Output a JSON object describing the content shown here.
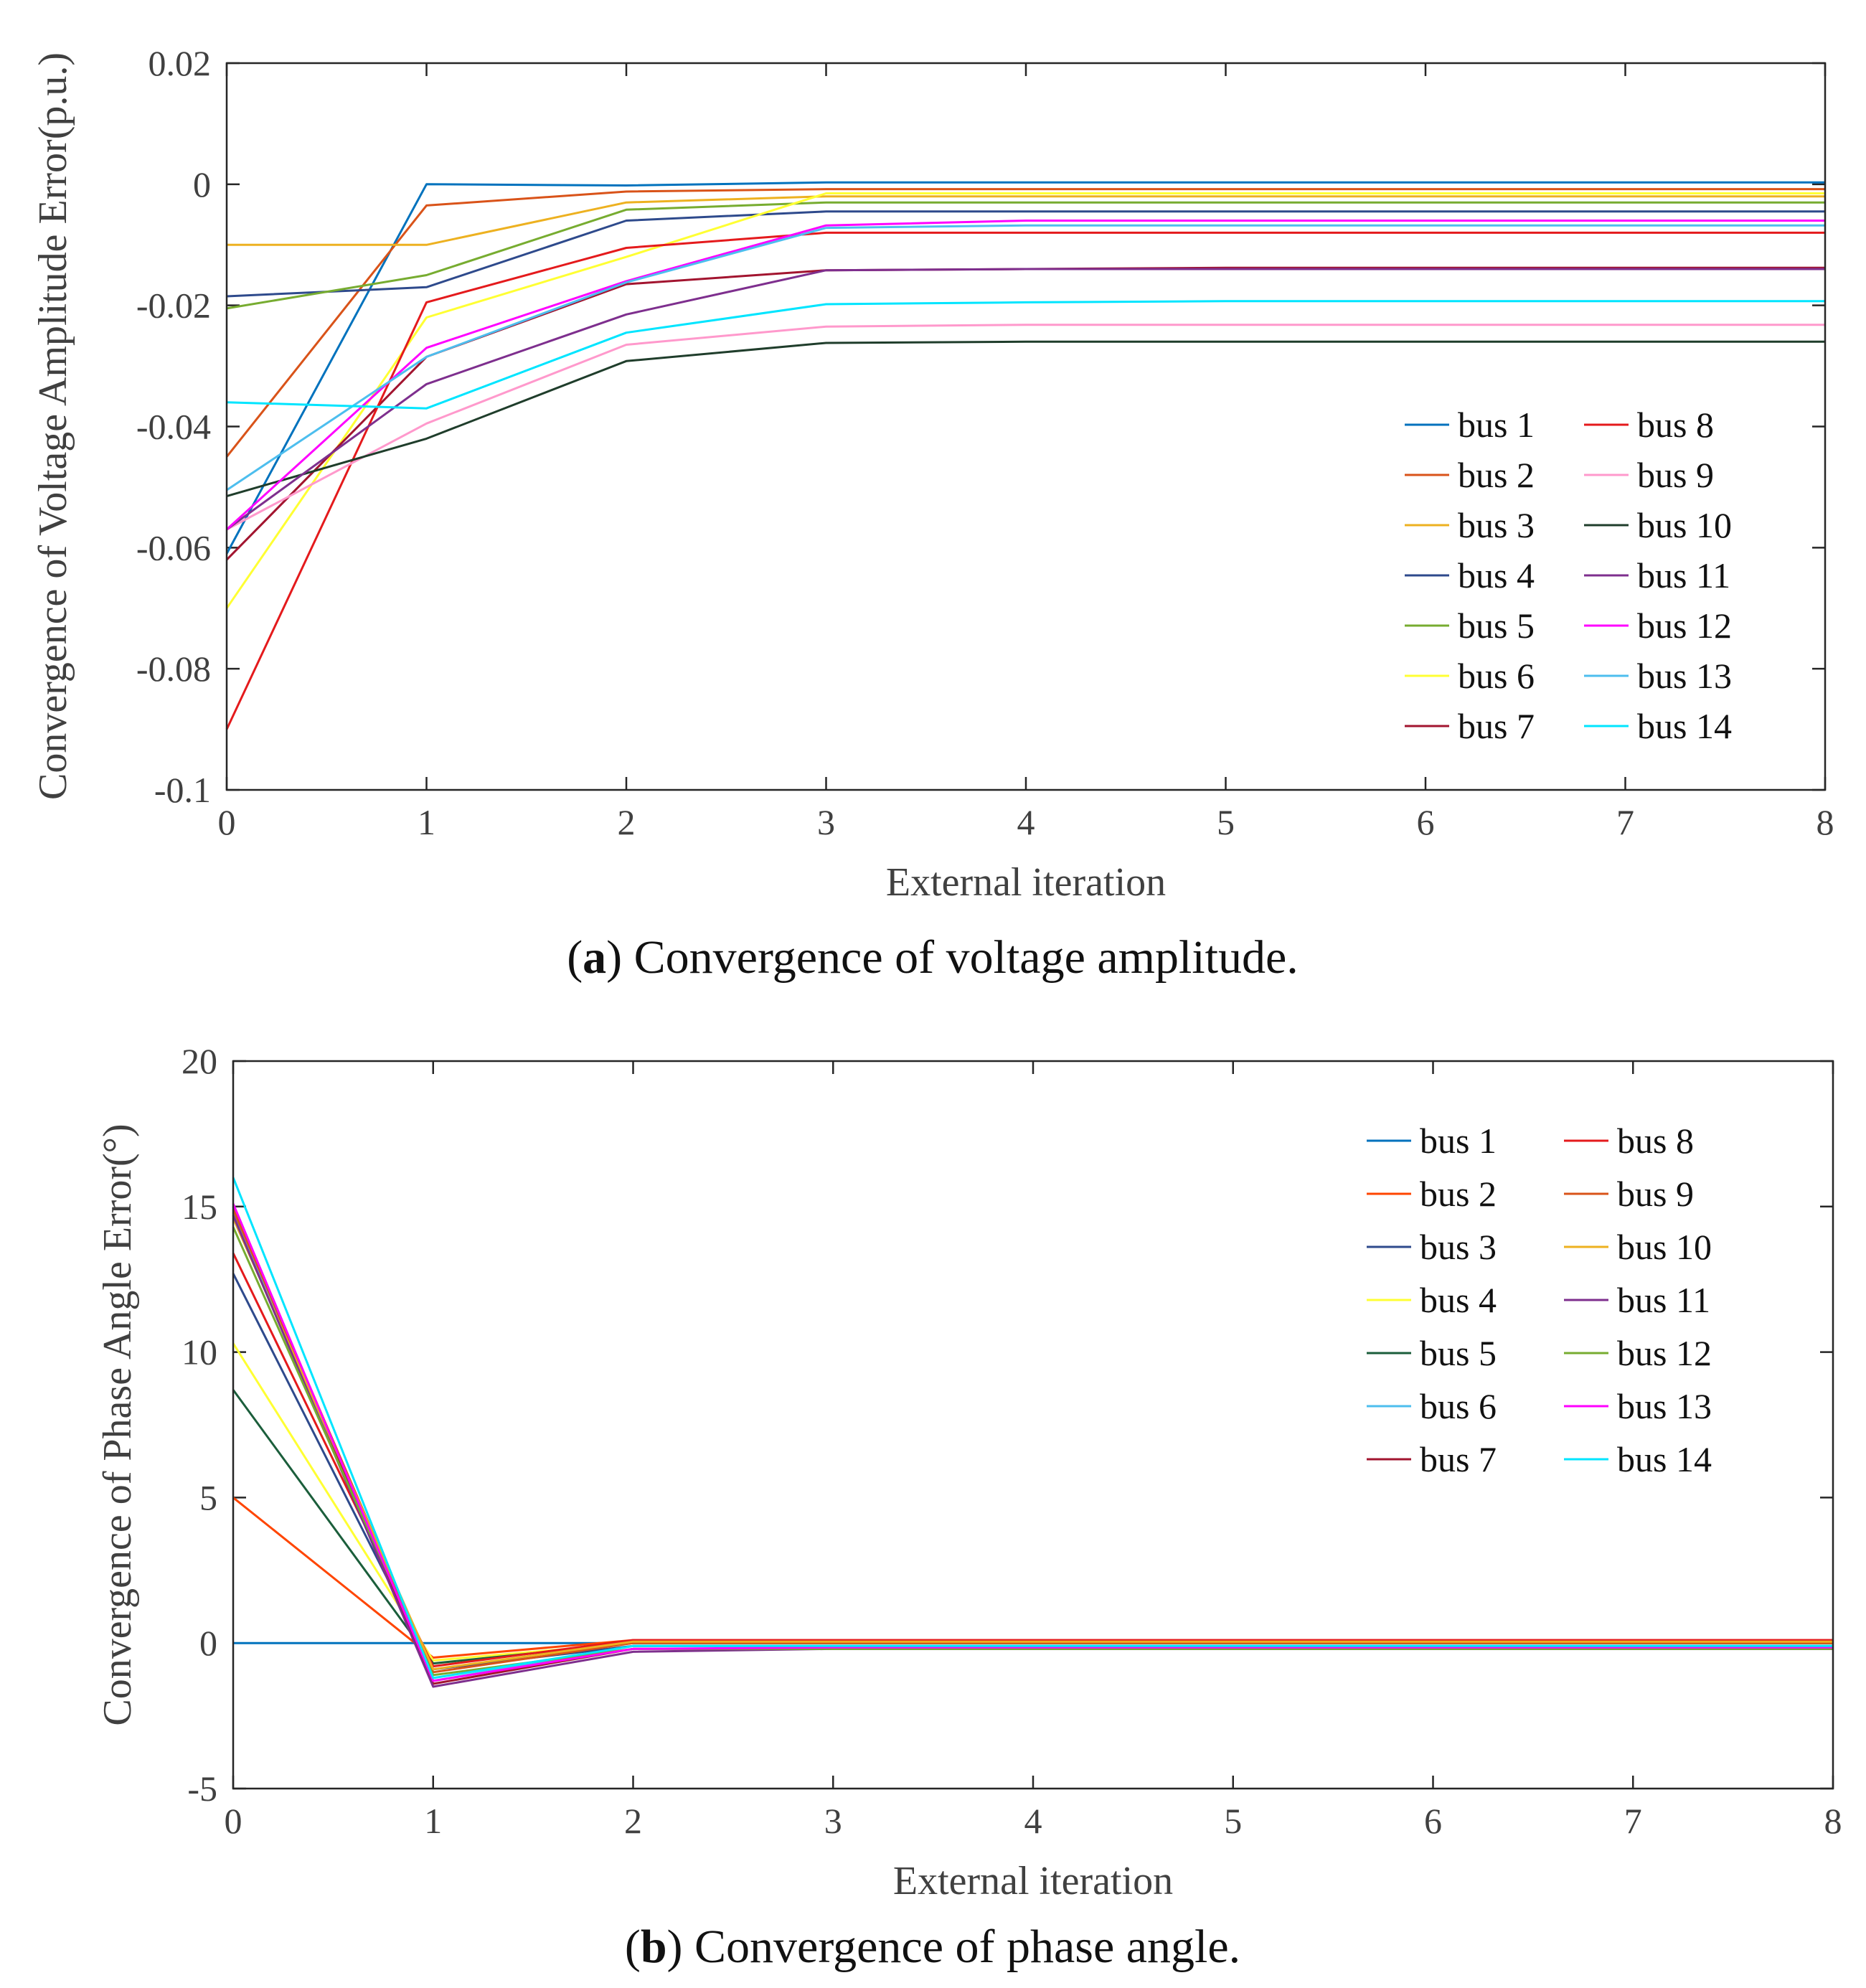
{
  "chart_data": [
    {
      "type": "line",
      "panel": "a",
      "caption_letter": "a",
      "caption_text": ") Convergence of voltage amplitude.",
      "xlabel": "External iteration",
      "ylabel": "Convergence of Voltage Amplitude Error(p.u.)",
      "xlim": [
        0,
        8
      ],
      "ylim": [
        -0.1,
        0.02
      ],
      "xticks": [
        0,
        1,
        2,
        3,
        4,
        5,
        6,
        7,
        8
      ],
      "xtick_labels": [
        "0",
        "1",
        "2",
        "3",
        "4",
        "5",
        "6",
        "7",
        "8"
      ],
      "yticks": [
        -0.1,
        -0.08,
        -0.06,
        -0.04,
        -0.02,
        0,
        0.02
      ],
      "ytick_labels": [
        "-0.1",
        "-0.08",
        "-0.06",
        "-0.04",
        "-0.02",
        "0",
        "0.02"
      ],
      "legend_position": "lower-right",
      "x": [
        0,
        1,
        2,
        3,
        4,
        5,
        6,
        7,
        8
      ],
      "series": [
        {
          "name": "bus 1",
          "color": "#0072BD",
          "values": [
            -0.061,
            0.0,
            -0.0002,
            0.0003,
            0.0003,
            0.0003,
            0.0003,
            0.0003,
            0.0003
          ]
        },
        {
          "name": "bus 2",
          "color": "#D95319",
          "values": [
            -0.045,
            -0.0035,
            -0.0012,
            -0.0008,
            -0.0008,
            -0.0008,
            -0.0008,
            -0.0008,
            -0.0008
          ]
        },
        {
          "name": "bus 3",
          "color": "#EDB120",
          "values": [
            -0.01,
            -0.01,
            -0.003,
            -0.002,
            -0.002,
            -0.002,
            -0.002,
            -0.002,
            -0.002
          ]
        },
        {
          "name": "bus 4",
          "color": "#2E4A8C",
          "values": [
            -0.0185,
            -0.017,
            -0.006,
            -0.0045,
            -0.0045,
            -0.0045,
            -0.0045,
            -0.0045,
            -0.0045
          ]
        },
        {
          "name": "bus 5",
          "color": "#77AC30",
          "values": [
            -0.0205,
            -0.015,
            -0.0042,
            -0.003,
            -0.003,
            -0.003,
            -0.003,
            -0.003,
            -0.003
          ]
        },
        {
          "name": "bus 6",
          "color": "#FFFF33",
          "values": [
            -0.07,
            -0.022,
            -0.012,
            -0.0015,
            -0.0015,
            -0.0015,
            -0.0015,
            -0.0015,
            -0.0015
          ]
        },
        {
          "name": "bus 7",
          "color": "#A2142F",
          "values": [
            -0.062,
            -0.0285,
            -0.0165,
            -0.0142,
            -0.014,
            -0.0138,
            -0.0138,
            -0.0138,
            -0.0138
          ]
        },
        {
          "name": "bus 8",
          "color": "#E41A1C",
          "values": [
            -0.09,
            -0.0195,
            -0.0105,
            -0.008,
            -0.008,
            -0.008,
            -0.008,
            -0.008,
            -0.008
          ]
        },
        {
          "name": "bus 9",
          "color": "#FF99CC",
          "values": [
            -0.057,
            -0.0395,
            -0.0265,
            -0.0235,
            -0.0232,
            -0.0232,
            -0.0232,
            -0.0232,
            -0.0232
          ]
        },
        {
          "name": "bus 10",
          "color": "#1F3D2B",
          "values": [
            -0.0515,
            -0.042,
            -0.0292,
            -0.0262,
            -0.026,
            -0.026,
            -0.026,
            -0.026,
            -0.026
          ]
        },
        {
          "name": "bus 11",
          "color": "#7E2F8E",
          "values": [
            -0.057,
            -0.033,
            -0.0215,
            -0.0142,
            -0.014,
            -0.014,
            -0.014,
            -0.014,
            -0.014
          ]
        },
        {
          "name": "bus 12",
          "color": "#FF00FF",
          "values": [
            -0.057,
            -0.027,
            -0.016,
            -0.0068,
            -0.006,
            -0.006,
            -0.006,
            -0.006,
            -0.006
          ]
        },
        {
          "name": "bus 13",
          "color": "#4DBEEE",
          "values": [
            -0.0505,
            -0.0285,
            -0.0162,
            -0.0072,
            -0.0068,
            -0.0068,
            -0.0068,
            -0.0068,
            -0.0068
          ]
        },
        {
          "name": "bus 14",
          "color": "#00E5FF",
          "values": [
            -0.036,
            -0.037,
            -0.0245,
            -0.0198,
            -0.0195,
            -0.0193,
            -0.0193,
            -0.0193,
            -0.0193
          ]
        }
      ]
    },
    {
      "type": "line",
      "panel": "b",
      "caption_letter": "b",
      "caption_text": ") Convergence of phase angle.",
      "xlabel": "External iteration",
      "ylabel": "Convergence of Phase Angle Error(°)",
      "xlim": [
        0,
        8
      ],
      "ylim": [
        -5,
        20
      ],
      "xticks": [
        0,
        1,
        2,
        3,
        4,
        5,
        6,
        7,
        8
      ],
      "xtick_labels": [
        "0",
        "1",
        "2",
        "3",
        "4",
        "5",
        "6",
        "7",
        "8"
      ],
      "yticks": [
        -5,
        0,
        5,
        10,
        15,
        20
      ],
      "ytick_labels": [
        "-5",
        "0",
        "5",
        "10",
        "15",
        "20"
      ],
      "legend_position": "top-right",
      "x": [
        0,
        1,
        2,
        3,
        4,
        5,
        6,
        7,
        8
      ],
      "series": [
        {
          "name": "bus 1",
          "color": "#0072BD",
          "values": [
            0,
            0,
            0,
            0,
            0,
            0,
            0,
            0,
            0
          ]
        },
        {
          "name": "bus 2",
          "color": "#FF4500",
          "values": [
            5.0,
            -0.5,
            0.1,
            0.1,
            0.1,
            0.1,
            0.1,
            0.1,
            0.1
          ]
        },
        {
          "name": "bus 3",
          "color": "#2E4A8C",
          "values": [
            12.7,
            -0.9,
            -0.1,
            -0.1,
            -0.1,
            -0.1,
            -0.1,
            -0.1,
            -0.1
          ]
        },
        {
          "name": "bus 4",
          "color": "#FFFF33",
          "values": [
            10.3,
            -0.6,
            0.0,
            0.0,
            0.0,
            0.0,
            0.0,
            0.0,
            0.0
          ]
        },
        {
          "name": "bus 5",
          "color": "#1B5E3B",
          "values": [
            8.7,
            -0.7,
            0.0,
            0.0,
            0.0,
            0.0,
            0.0,
            0.0,
            0.0
          ]
        },
        {
          "name": "bus 6",
          "color": "#4DBEEE",
          "values": [
            14.8,
            -1.3,
            -0.1,
            -0.1,
            -0.1,
            -0.1,
            -0.1,
            -0.1,
            -0.1
          ]
        },
        {
          "name": "bus 7",
          "color": "#A2142F",
          "values": [
            15.0,
            -1.4,
            -0.2,
            -0.2,
            -0.2,
            -0.2,
            -0.2,
            -0.2,
            -0.2
          ]
        },
        {
          "name": "bus 8",
          "color": "#E41A1C",
          "values": [
            13.4,
            -0.8,
            0.1,
            0.1,
            0.1,
            0.1,
            0.1,
            0.1,
            0.1
          ]
        },
        {
          "name": "bus 9",
          "color": "#D95319",
          "values": [
            14.9,
            -1.0,
            0.0,
            0.0,
            0.0,
            0.0,
            0.0,
            0.0,
            0.0
          ]
        },
        {
          "name": "bus 10",
          "color": "#EDB120",
          "values": [
            14.6,
            -0.9,
            0.05,
            0.05,
            0.05,
            0.05,
            0.05,
            0.05,
            0.05
          ]
        },
        {
          "name": "bus 11",
          "color": "#7E2F8E",
          "values": [
            14.7,
            -1.5,
            -0.3,
            -0.2,
            -0.2,
            -0.2,
            -0.2,
            -0.2,
            -0.2
          ]
        },
        {
          "name": "bus 12",
          "color": "#77AC30",
          "values": [
            14.3,
            -1.1,
            -0.2,
            -0.2,
            -0.2,
            -0.2,
            -0.2,
            -0.2,
            -0.2
          ]
        },
        {
          "name": "bus 13",
          "color": "#FF00FF",
          "values": [
            15.1,
            -1.3,
            -0.2,
            -0.15,
            -0.15,
            -0.15,
            -0.15,
            -0.15,
            -0.15
          ]
        },
        {
          "name": "bus 14",
          "color": "#00E5FF",
          "values": [
            16.0,
            -1.2,
            -0.1,
            -0.1,
            -0.1,
            -0.1,
            -0.1,
            -0.1,
            -0.1
          ]
        }
      ]
    }
  ]
}
